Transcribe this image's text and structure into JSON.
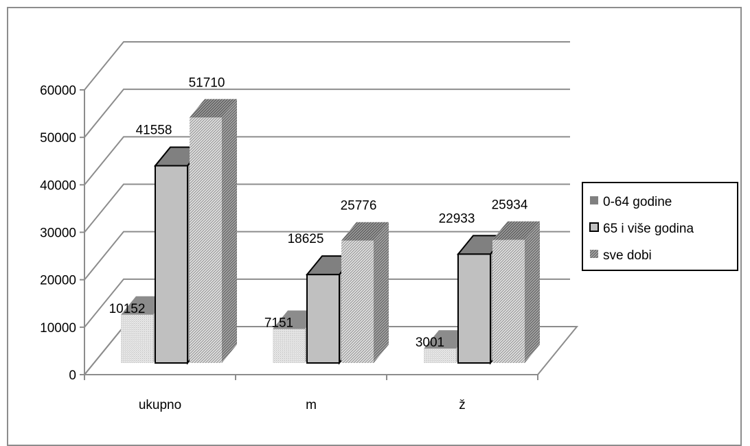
{
  "chart_data": {
    "type": "bar",
    "title": "",
    "xlabel": "",
    "ylabel": "",
    "ylim": [
      0,
      60000
    ],
    "yticks": [
      0,
      10000,
      20000,
      30000,
      40000,
      50000,
      60000
    ],
    "tick_labels": [
      "0",
      "10000",
      "20000",
      "30000",
      "40000",
      "50000",
      "60000"
    ],
    "categories": [
      "ukupno",
      "m",
      "ž"
    ],
    "grid": true,
    "three_d": true,
    "legend_position": "right",
    "series": [
      {
        "name": "0-64 godine",
        "values": [
          10152,
          7151,
          3001
        ],
        "labels": [
          "10152",
          "7151",
          "3001"
        ],
        "color": "#d9d9d9",
        "top_color": "#808080",
        "pattern": "dotted-light"
      },
      {
        "name": "65 i više godina",
        "values": [
          41558,
          18625,
          22933
        ],
        "labels": [
          "41558",
          "18625",
          "22933"
        ],
        "color": "#c0c0c0",
        "top_color": "#808080",
        "pattern": "solid"
      },
      {
        "name": "sve dobi",
        "values": [
          51710,
          25776,
          25934
        ],
        "labels": [
          "51710",
          "25776",
          "25934"
        ],
        "color": "#bfbfbf",
        "top_color": "#808080",
        "pattern": "diagonal-dense"
      }
    ]
  }
}
